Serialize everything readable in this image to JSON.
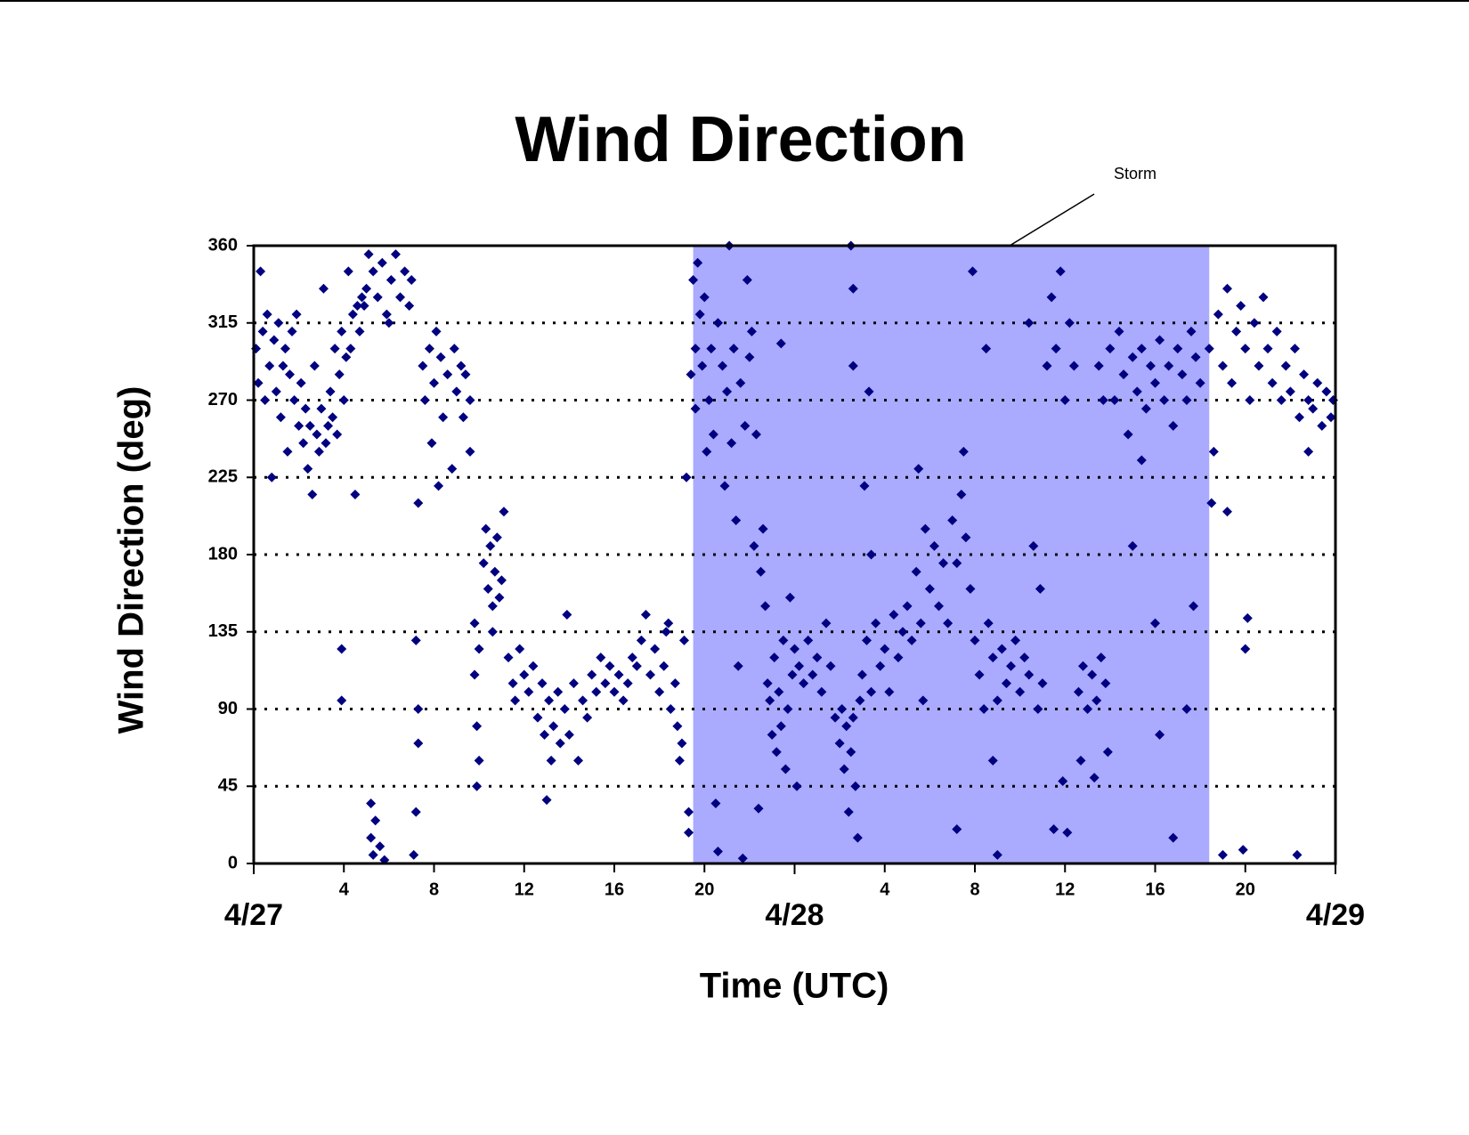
{
  "chart_data": {
    "type": "scatter",
    "title": "Wind Direction",
    "x_label": "Time (UTC)",
    "y_label": "Wind Direction (deg)",
    "annotation": "Storm",
    "shaded_region": [
      19.5,
      42.4
    ],
    "shaded_color": "#aaaaff",
    "color": "#000080",
    "grid": true,
    "xlim": [
      0,
      48
    ],
    "ylim": [
      0,
      360
    ],
    "yticks": [
      0,
      45,
      90,
      135,
      180,
      225,
      270,
      315,
      360
    ],
    "xticks": [
      4,
      8,
      12,
      16,
      20,
      {
        "value": 28,
        "label": "4"
      },
      {
        "value": 32,
        "label": "8"
      },
      {
        "value": 36,
        "label": "12"
      },
      {
        "value": 40,
        "label": "16"
      },
      {
        "value": 44,
        "label": "20"
      }
    ],
    "date_ticks": [
      {
        "value": 0,
        "label": "4/27"
      },
      {
        "value": 24,
        "label": "4/28"
      },
      {
        "value": 48,
        "label": "4/29"
      }
    ],
    "x": [
      0.1,
      0.2,
      0.3,
      0.4,
      0.5,
      0.6,
      0.7,
      0.8,
      0.9,
      1.0,
      1.1,
      1.2,
      1.3,
      1.4,
      1.5,
      1.6,
      1.7,
      1.8,
      1.9,
      2.0,
      2.1,
      2.2,
      2.3,
      2.4,
      2.5,
      2.6,
      2.7,
      2.8,
      2.9,
      3.0,
      3.1,
      3.2,
      3.3,
      3.4,
      3.5,
      3.6,
      3.7,
      3.8,
      3.9,
      4.0,
      4.1,
      4.2,
      4.3,
      4.4,
      4.5,
      4.6,
      4.7,
      4.8,
      4.9,
      5.0,
      3.9,
      3.9,
      5.2,
      5.2,
      5.3,
      5.4,
      5.6,
      5.8,
      5.1,
      5.3,
      5.5,
      5.7,
      5.9,
      6.1,
      6.3,
      6.5,
      6.7,
      6.9,
      7.0,
      6.0,
      7.2,
      7.3,
      7.3,
      7.2,
      7.1,
      7.3,
      7.5,
      7.6,
      7.8,
      7.9,
      8.0,
      8.1,
      8.3,
      8.4,
      8.6,
      8.8,
      8.9,
      9.0,
      9.2,
      9.3,
      9.4,
      9.6,
      9.6,
      8.2,
      9.8,
      9.8,
      9.9,
      9.9,
      10.0,
      10.0,
      10.2,
      10.3,
      10.4,
      10.5,
      10.6,
      10.7,
      10.8,
      10.9,
      11.0,
      11.1,
      10.6,
      11.3,
      11.5,
      11.6,
      11.8,
      12.0,
      12.2,
      12.4,
      12.6,
      12.8,
      12.9,
      13.1,
      13.2,
      13.3,
      13.5,
      13.6,
      13.8,
      13.9,
      14.0,
      14.2,
      14.4,
      14.6,
      14.8,
      13.0,
      15.0,
      15.2,
      15.4,
      15.6,
      15.8,
      16.0,
      16.2,
      16.4,
      16.6,
      16.8,
      17.0,
      17.2,
      17.4,
      17.6,
      17.8,
      18.0,
      18.2,
      18.4,
      18.5,
      18.7,
      18.8,
      18.9,
      19.0,
      19.1,
      18.3,
      19.2,
      19.3,
      19.3,
      19.4,
      19.5,
      19.6,
      19.7,
      19.8,
      19.9,
      20.0,
      19.6,
      20.1,
      20.2,
      20.3,
      20.4,
      20.5,
      20.6,
      20.6,
      20.8,
      20.9,
      21.0,
      21.1,
      21.2,
      21.3,
      21.4,
      21.5,
      21.6,
      21.7,
      21.8,
      21.9,
      22.0,
      22.1,
      22.2,
      22.3,
      22.4,
      22.5,
      22.6,
      22.7,
      22.8,
      22.9,
      23.0,
      23.1,
      23.2,
      23.3,
      23.4,
      23.5,
      23.6,
      23.7,
      23.8,
      23.9,
      24.0,
      24.2,
      24.4,
      24.6,
      24.8,
      23.4,
      24.1,
      25.0,
      25.2,
      25.4,
      25.6,
      25.8,
      26.0,
      26.1,
      26.2,
      26.3,
      26.4,
      26.5,
      26.6,
      26.7,
      26.8,
      26.9,
      26.5,
      26.6,
      26.6,
      27.0,
      27.2,
      27.3,
      27.4,
      27.6,
      27.8,
      28.0,
      28.2,
      28.4,
      28.6,
      28.8,
      27.1,
      27.4,
      29.0,
      29.2,
      29.4,
      29.6,
      29.8,
      30.0,
      30.2,
      30.4,
      30.6,
      30.8,
      29.5,
      29.7,
      31.0,
      31.2,
      31.4,
      31.6,
      31.8,
      31.9,
      31.5,
      31.2,
      32.0,
      32.2,
      32.4,
      32.6,
      32.8,
      33.0,
      33.2,
      33.4,
      33.6,
      33.8,
      32.5,
      32.8,
      33.0,
      34.0,
      34.2,
      34.4,
      34.6,
      34.8,
      35.0,
      34.4,
      34.9,
      35.2,
      35.4,
      35.6,
      35.8,
      36.0,
      36.2,
      36.4,
      35.5,
      36.1,
      35.9,
      36.6,
      36.8,
      37.0,
      37.2,
      37.4,
      37.6,
      37.8,
      36.7,
      37.3,
      37.5,
      37.7,
      37.9,
      38.0,
      38.2,
      38.4,
      38.6,
      38.8,
      39.0,
      39.2,
      39.4,
      39.6,
      39.8,
      40.0,
      40.2,
      40.4,
      40.6,
      40.8,
      41.0,
      41.2,
      41.4,
      41.6,
      41.8,
      42.0,
      39.0,
      39.4,
      40.0,
      40.2,
      40.8,
      41.4,
      41.7,
      42.4,
      42.6,
      42.8,
      43.0,
      43.2,
      43.4,
      43.6,
      43.8,
      44.0,
      44.2,
      44.4,
      44.6,
      44.8,
      43.2,
      42.5,
      43.0,
      44.0,
      44.1,
      43.9,
      45.0,
      45.2,
      45.4,
      45.6,
      45.8,
      46.0,
      46.2,
      46.4,
      46.6,
      46.8,
      47.0,
      47.2,
      47.4,
      47.6,
      47.8,
      47.9,
      46.3,
      46.8
    ],
    "values": [
      300,
      280,
      345,
      310,
      270,
      320,
      290,
      225,
      305,
      275,
      315,
      260,
      290,
      300,
      240,
      285,
      310,
      270,
      320,
      255,
      280,
      245,
      265,
      230,
      255,
      215,
      290,
      250,
      240,
      265,
      335,
      245,
      255,
      275,
      260,
      300,
      250,
      285,
      310,
      270,
      295,
      345,
      300,
      320,
      215,
      325,
      310,
      330,
      325,
      335,
      125,
      95,
      35,
      15,
      5,
      25,
      10,
      2,
      355,
      345,
      330,
      350,
      320,
      340,
      355,
      330,
      345,
      325,
      340,
      315,
      130,
      90,
      70,
      30,
      5,
      210,
      290,
      270,
      300,
      245,
      280,
      310,
      295,
      260,
      285,
      230,
      300,
      275,
      290,
      260,
      285,
      240,
      270,
      220,
      140,
      110,
      80,
      45,
      60,
      125,
      175,
      195,
      160,
      185,
      150,
      170,
      190,
      155,
      165,
      205,
      135,
      120,
      105,
      95,
      125,
      110,
      100,
      115,
      85,
      105,
      75,
      95,
      60,
      80,
      100,
      70,
      90,
      145,
      75,
      105,
      60,
      95,
      85,
      37,
      110,
      100,
      120,
      105,
      115,
      100,
      110,
      95,
      105,
      120,
      115,
      130,
      145,
      110,
      125,
      100,
      115,
      140,
      90,
      105,
      80,
      60,
      70,
      130,
      135,
      225,
      30,
      18,
      285,
      340,
      300,
      350,
      320,
      290,
      330,
      265,
      240,
      270,
      300,
      250,
      35,
      7,
      315,
      290,
      220,
      275,
      360,
      245,
      300,
      200,
      115,
      280,
      3,
      255,
      340,
      295,
      310,
      185,
      250,
      32,
      170,
      195,
      150,
      105,
      95,
      75,
      120,
      65,
      100,
      80,
      130,
      55,
      90,
      155,
      110,
      125,
      115,
      105,
      130,
      110,
      303,
      45,
      120,
      100,
      140,
      115,
      85,
      70,
      90,
      55,
      80,
      30,
      65,
      85,
      45,
      15,
      95,
      360,
      335,
      290,
      110,
      130,
      275,
      100,
      140,
      115,
      125,
      100,
      145,
      120,
      135,
      220,
      180,
      150,
      130,
      170,
      140,
      195,
      160,
      185,
      150,
      175,
      140,
      230,
      95,
      200,
      175,
      215,
      190,
      160,
      345,
      240,
      20,
      130,
      110,
      90,
      140,
      120,
      95,
      125,
      105,
      115,
      130,
      300,
      60,
      5,
      100,
      120,
      110,
      185,
      90,
      105,
      315,
      160,
      290,
      330,
      300,
      345,
      270,
      315,
      290,
      20,
      18,
      48,
      100,
      115,
      90,
      110,
      95,
      120,
      105,
      60,
      50,
      290,
      270,
      65,
      300,
      270,
      310,
      285,
      250,
      295,
      275,
      300,
      265,
      290,
      280,
      305,
      270,
      290,
      255,
      300,
      285,
      270,
      310,
      295,
      280,
      185,
      235,
      140,
      75,
      15,
      90,
      150,
      300,
      240,
      320,
      290,
      335,
      280,
      310,
      325,
      300,
      270,
      315,
      290,
      330,
      205,
      210,
      5,
      125,
      143,
      8,
      300,
      280,
      310,
      270,
      290,
      275,
      300,
      260,
      285,
      270,
      265,
      280,
      255,
      275,
      260,
      270,
      5,
      240
    ]
  }
}
